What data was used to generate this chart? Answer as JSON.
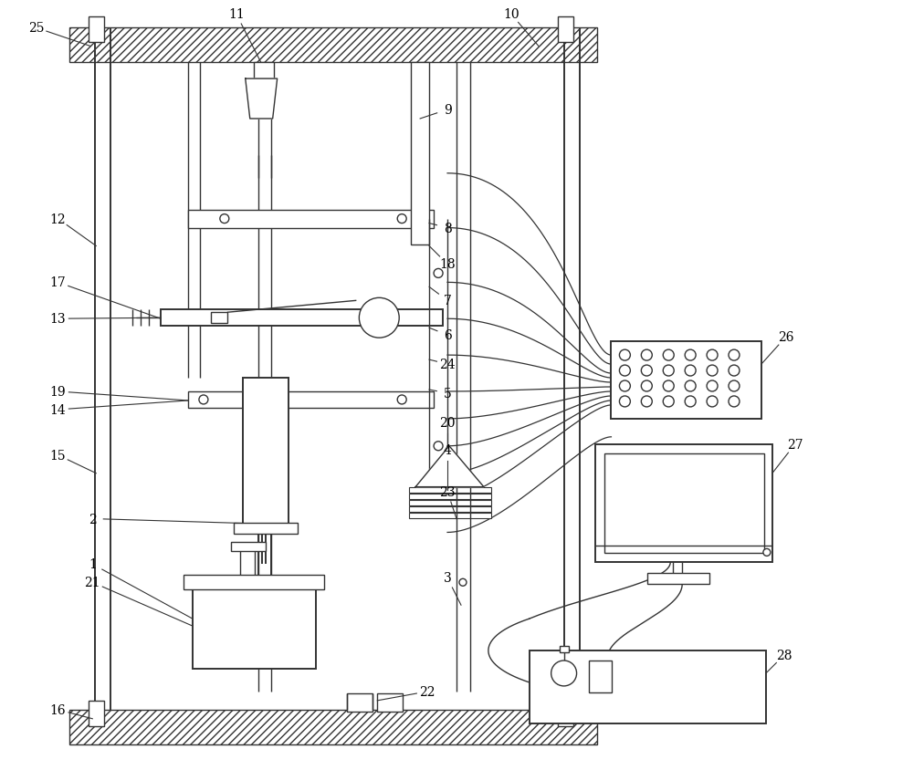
{
  "bg_color": "#ffffff",
  "line_color": "#333333",
  "lw": 1.0,
  "lw2": 1.4,
  "fig_width": 10.0,
  "fig_height": 8.45
}
